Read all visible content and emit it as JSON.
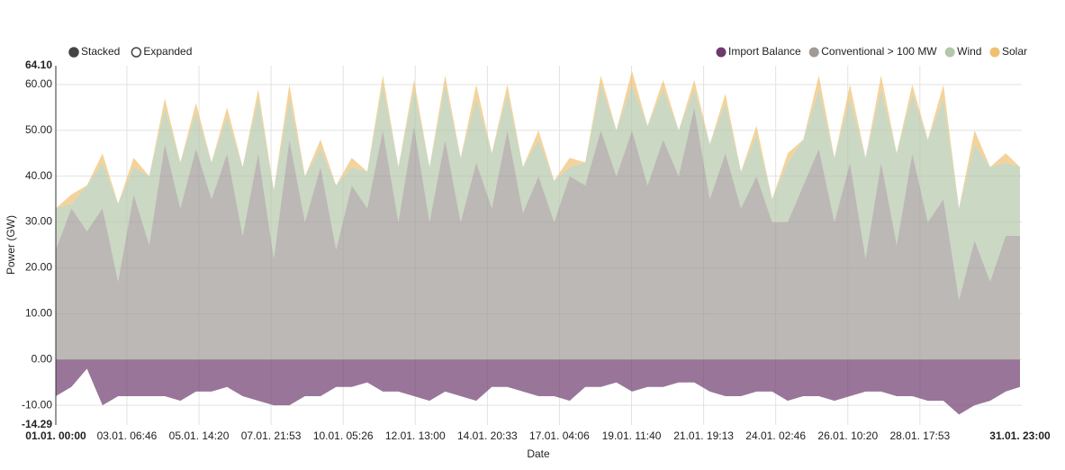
{
  "chart_data": {
    "type": "stacked_area",
    "toggles": [
      "Stacked",
      "Expanded"
    ],
    "xlabel": "Date",
    "ylabel": "Power (GW)",
    "x": [
      "01.01. 00:00",
      "01.01. 12:00",
      "02.01. 00:00",
      "02.01. 12:00",
      "03.01. 00:00",
      "03.01. 12:00",
      "04.01. 00:00",
      "04.01. 12:00",
      "05.01. 00:00",
      "05.01. 12:00",
      "06.01. 00:00",
      "06.01. 12:00",
      "07.01. 00:00",
      "07.01. 12:00",
      "08.01. 00:00",
      "08.01. 12:00",
      "09.01. 00:00",
      "09.01. 12:00",
      "10.01. 00:00",
      "10.01. 12:00",
      "11.01. 00:00",
      "11.01. 12:00",
      "12.01. 00:00",
      "12.01. 12:00",
      "13.01. 00:00",
      "13.01. 12:00",
      "14.01. 00:00",
      "14.01. 12:00",
      "15.01. 00:00",
      "15.01. 12:00",
      "16.01. 00:00",
      "16.01. 12:00",
      "17.01. 00:00",
      "17.01. 12:00",
      "18.01. 00:00",
      "18.01. 12:00",
      "19.01. 00:00",
      "19.01. 12:00",
      "20.01. 00:00",
      "20.01. 12:00",
      "21.01. 00:00",
      "21.01. 12:00",
      "22.01. 00:00",
      "22.01. 12:00",
      "23.01. 00:00",
      "23.01. 12:00",
      "24.01. 00:00",
      "24.01. 12:00",
      "25.01. 00:00",
      "25.01. 12:00",
      "26.01. 00:00",
      "26.01. 12:00",
      "27.01. 00:00",
      "27.01. 12:00",
      "28.01. 00:00",
      "28.01. 12:00",
      "29.01. 00:00",
      "29.01. 12:00",
      "30.01. 00:00",
      "30.01. 12:00",
      "31.01. 00:00",
      "31.01. 12:00",
      "31.01. 23:00"
    ],
    "xlim": [
      "01.01. 00:00",
      "31.01. 23:00"
    ],
    "xticks": [
      "03.01. 06:46",
      "05.01. 14:20",
      "07.01. 21:53",
      "10.01. 05:26",
      "12.01. 13:00",
      "14.01. 20:33",
      "17.01. 04:06",
      "19.01. 11:40",
      "21.01. 19:13",
      "24.01. 02:46",
      "26.01. 10:20",
      "28.01. 17:53"
    ],
    "ylim": [
      {
        "value": -14.29,
        "label": "-14.29"
      },
      {
        "value": 64.1,
        "label": "64.10"
      }
    ],
    "yticks": [
      {
        "value": -10,
        "label": "-10.00"
      },
      {
        "value": 0,
        "label": "0.00"
      },
      {
        "value": 10,
        "label": "10.00"
      },
      {
        "value": 20,
        "label": "20.00"
      },
      {
        "value": 30,
        "label": "30.00"
      },
      {
        "value": 40,
        "label": "40.00"
      },
      {
        "value": 50,
        "label": "50.00"
      },
      {
        "value": 60,
        "label": "60.00"
      }
    ],
    "grid": true,
    "legend": "top-right",
    "series": [
      {
        "name": "Import Balance",
        "color": "#6e3a6e",
        "values": [
          -8,
          -6,
          -2,
          -10,
          -8,
          -8,
          -8,
          -8,
          -9,
          -7,
          -7,
          -6,
          -8,
          -9,
          -10,
          -10,
          -8,
          -8,
          -6,
          -6,
          -5,
          -7,
          -7,
          -8,
          -9,
          -7,
          -8,
          -9,
          -6,
          -6,
          -7,
          -8,
          -8,
          -9,
          -6,
          -6,
          -5,
          -7,
          -6,
          -6,
          -5,
          -5,
          -7,
          -8,
          -8,
          -7,
          -7,
          -9,
          -8,
          -8,
          -9,
          -8,
          -7,
          -7,
          -8,
          -8,
          -9,
          -9,
          -12,
          -10,
          -9,
          -7,
          -6
        ]
      },
      {
        "name": "Conventional > 100 MW",
        "color": "#a09a97",
        "values": [
          24,
          33,
          28,
          33,
          17,
          36,
          25,
          47,
          33,
          46,
          35,
          45,
          27,
          45,
          22,
          48,
          30,
          42,
          24,
          38,
          33,
          50,
          30,
          51,
          30,
          48,
          30,
          43,
          33,
          50,
          32,
          40,
          30,
          40,
          38,
          50,
          40,
          50,
          38,
          48,
          40,
          55,
          35,
          45,
          33,
          40,
          30,
          30,
          38,
          46,
          30,
          43,
          22,
          43,
          25,
          45,
          30,
          35,
          13,
          26,
          17,
          27,
          27
        ]
      },
      {
        "name": "Wind",
        "color": "#b5c7aa",
        "values": [
          9,
          1,
          10,
          10,
          17,
          6,
          15,
          8,
          10,
          8,
          8,
          8,
          15,
          12,
          15,
          9,
          10,
          4,
          14,
          4,
          8,
          10,
          12,
          8,
          12,
          12,
          14,
          14,
          12,
          8,
          10,
          8,
          9,
          2,
          5,
          10,
          10,
          10,
          13,
          11,
          10,
          4,
          12,
          11,
          8,
          9,
          5,
          13,
          10,
          13,
          14,
          14,
          22,
          16,
          20,
          13,
          18,
          22,
          20,
          21,
          25,
          16,
          15
        ]
      },
      {
        "name": "Solar",
        "color": "#f0c070",
        "values": [
          0,
          2,
          0,
          2,
          0,
          2,
          0,
          2,
          0,
          2,
          0,
          2,
          0,
          2,
          0,
          3,
          0,
          2,
          0,
          2,
          0,
          2,
          0,
          2,
          0,
          2,
          0,
          3,
          0,
          2,
          0,
          2,
          0,
          2,
          0,
          2,
          0,
          3,
          0,
          2,
          0,
          2,
          0,
          2,
          0,
          2,
          0,
          2,
          0,
          3,
          0,
          3,
          0,
          3,
          0,
          2,
          0,
          3,
          0,
          3,
          0,
          2,
          0
        ]
      }
    ]
  }
}
